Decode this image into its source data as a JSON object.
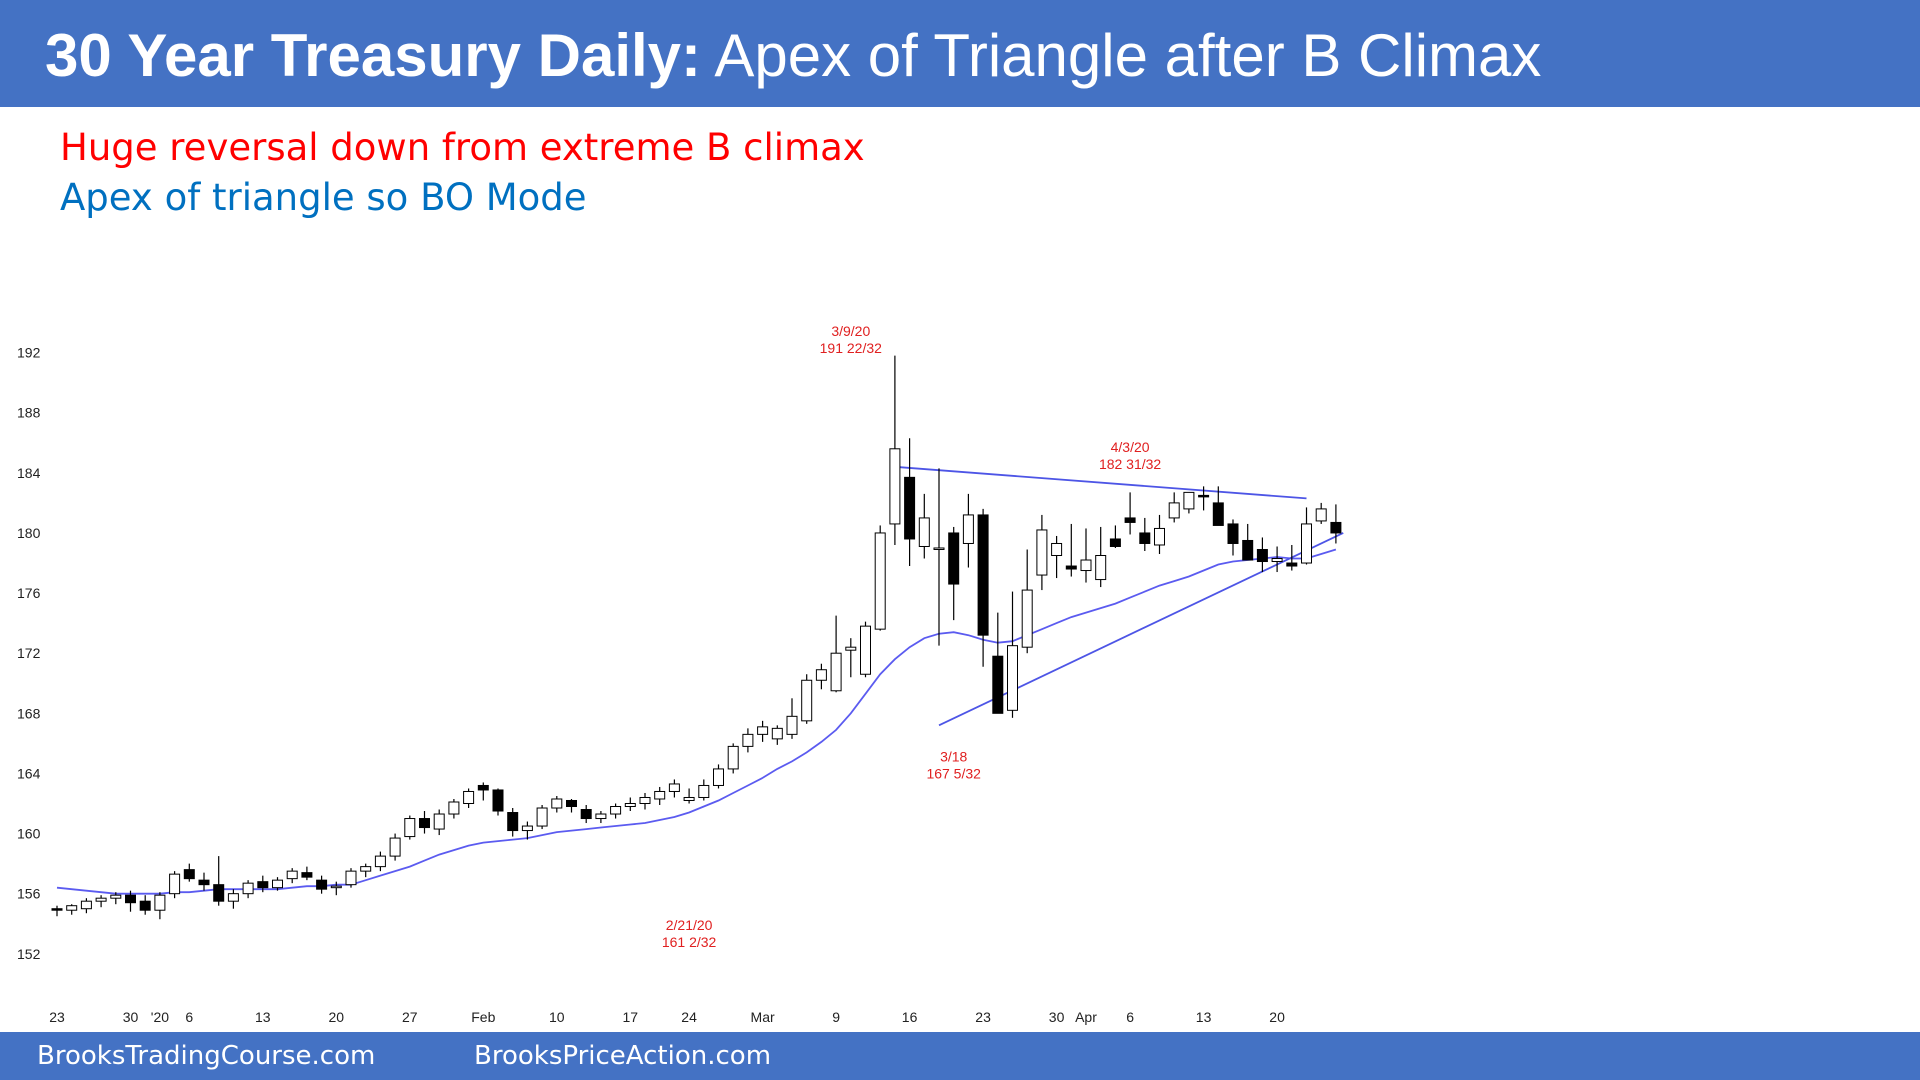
{
  "header": {
    "title_bold": "30 Year Treasury Daily:",
    "title_rest": "Apex of Triangle after B Climax",
    "bg_color": "#4472C4"
  },
  "subtitles": [
    {
      "text": "Huge reversal down from extreme B climax",
      "color": "#FF0000"
    },
    {
      "text": "Apex of triangle so BO Mode",
      "color": "#0070C0"
    }
  ],
  "footer": {
    "left": "BrooksTradingCourse.com",
    "right": "BrooksPriceAction.com"
  },
  "chart_data": {
    "type": "candlestick",
    "ylim": [
      150,
      194
    ],
    "y_ticks": [
      152,
      156,
      160,
      164,
      168,
      172,
      176,
      180,
      184,
      188,
      192
    ],
    "x_ticks": [
      {
        "label": "23",
        "bar": 0
      },
      {
        "label": "30",
        "bar": 5
      },
      {
        "label": "'20",
        "bar": 7
      },
      {
        "label": "6",
        "bar": 9
      },
      {
        "label": "13",
        "bar": 14
      },
      {
        "label": "20",
        "bar": 19
      },
      {
        "label": "27",
        "bar": 24
      },
      {
        "label": "Feb",
        "bar": 29
      },
      {
        "label": "10",
        "bar": 34
      },
      {
        "label": "17",
        "bar": 39
      },
      {
        "label": "24",
        "bar": 43
      },
      {
        "label": "Mar",
        "bar": 48
      },
      {
        "label": "9",
        "bar": 53
      },
      {
        "label": "16",
        "bar": 58
      },
      {
        "label": "23",
        "bar": 63
      },
      {
        "label": "30",
        "bar": 68
      },
      {
        "label": "Apr",
        "bar": 70
      },
      {
        "label": "6",
        "bar": 73
      },
      {
        "label": "13",
        "bar": 78
      },
      {
        "label": "20",
        "bar": 83
      }
    ],
    "candles": [
      [
        155.0,
        155.2,
        154.5,
        154.9
      ],
      [
        154.9,
        155.3,
        154.6,
        155.2
      ],
      [
        155.0,
        155.7,
        154.7,
        155.5
      ],
      [
        155.5,
        155.9,
        155.1,
        155.7
      ],
      [
        155.7,
        156.1,
        155.3,
        155.9
      ],
      [
        155.9,
        156.2,
        154.8,
        155.4
      ],
      [
        155.5,
        155.9,
        154.6,
        154.9
      ],
      [
        154.9,
        156.1,
        154.3,
        155.9
      ],
      [
        156.0,
        157.5,
        155.7,
        157.3
      ],
      [
        157.6,
        158.0,
        156.8,
        157.0
      ],
      [
        156.9,
        157.4,
        156.2,
        156.6
      ],
      [
        156.6,
        158.5,
        155.2,
        155.5
      ],
      [
        155.5,
        156.3,
        155.0,
        156.0
      ],
      [
        156.0,
        156.9,
        155.7,
        156.7
      ],
      [
        156.8,
        157.2,
        156.1,
        156.4
      ],
      [
        156.4,
        157.1,
        156.2,
        156.9
      ],
      [
        157.0,
        157.7,
        156.7,
        157.5
      ],
      [
        157.4,
        157.8,
        156.9,
        157.1
      ],
      [
        156.9,
        157.2,
        156.0,
        156.3
      ],
      [
        156.4,
        156.8,
        155.9,
        156.5
      ],
      [
        156.6,
        157.7,
        156.4,
        157.5
      ],
      [
        157.5,
        158.0,
        157.1,
        157.8
      ],
      [
        157.8,
        158.8,
        157.5,
        158.5
      ],
      [
        158.5,
        160.0,
        158.2,
        159.7
      ],
      [
        159.8,
        161.2,
        159.6,
        161.0
      ],
      [
        161.0,
        161.5,
        160.0,
        160.4
      ],
      [
        160.3,
        161.6,
        159.9,
        161.3
      ],
      [
        161.3,
        162.3,
        161.0,
        162.1
      ],
      [
        162.0,
        163.0,
        161.7,
        162.8
      ],
      [
        163.2,
        163.4,
        162.2,
        162.9
      ],
      [
        162.9,
        163.0,
        161.2,
        161.5
      ],
      [
        161.4,
        161.7,
        159.8,
        160.2
      ],
      [
        160.2,
        160.8,
        159.6,
        160.5
      ],
      [
        160.5,
        161.9,
        160.3,
        161.7
      ],
      [
        161.7,
        162.5,
        161.4,
        162.3
      ],
      [
        162.2,
        162.3,
        161.4,
        161.8
      ],
      [
        161.6,
        161.9,
        160.7,
        161.0
      ],
      [
        161.0,
        161.5,
        160.7,
        161.3
      ],
      [
        161.3,
        162.0,
        161.0,
        161.8
      ],
      [
        161.8,
        162.4,
        161.5,
        162.0
      ],
      [
        162.0,
        162.7,
        161.6,
        162.4
      ],
      [
        162.3,
        163.1,
        161.9,
        162.8
      ],
      [
        162.8,
        163.6,
        162.4,
        163.3
      ],
      [
        162.2,
        163.0,
        162.0,
        162.4
      ],
      [
        162.4,
        163.6,
        162.2,
        163.2
      ],
      [
        163.2,
        164.6,
        163.0,
        164.3
      ],
      [
        164.3,
        166.0,
        164.0,
        165.8
      ],
      [
        165.8,
        167.0,
        165.4,
        166.6
      ],
      [
        166.6,
        167.5,
        166.1,
        167.1
      ],
      [
        166.3,
        167.2,
        165.9,
        167.0
      ],
      [
        166.6,
        169.0,
        166.3,
        167.8
      ],
      [
        167.5,
        170.6,
        167.3,
        170.2
      ],
      [
        170.2,
        171.3,
        169.6,
        170.9
      ],
      [
        169.5,
        174.5,
        169.4,
        172.0
      ],
      [
        172.2,
        173.0,
        170.4,
        172.4
      ],
      [
        170.6,
        174.1,
        170.4,
        173.8
      ],
      [
        173.6,
        180.5,
        173.5,
        180.0
      ],
      [
        180.6,
        191.8,
        179.2,
        185.6
      ],
      [
        183.7,
        186.3,
        177.8,
        179.6
      ],
      [
        179.1,
        182.6,
        178.3,
        181.0
      ],
      [
        179.0,
        184.3,
        172.5,
        179.0
      ],
      [
        180.0,
        180.4,
        174.2,
        176.6
      ],
      [
        179.3,
        182.6,
        177.7,
        181.2
      ],
      [
        181.2,
        181.6,
        171.1,
        173.2
      ],
      [
        171.8,
        174.7,
        168.2,
        168.0
      ],
      [
        168.2,
        176.1,
        167.7,
        172.5
      ],
      [
        172.4,
        178.9,
        172.0,
        176.2
      ],
      [
        177.2,
        181.2,
        176.2,
        180.2
      ],
      [
        178.5,
        179.8,
        177.0,
        179.3
      ],
      [
        177.8,
        180.6,
        177.1,
        177.6
      ],
      [
        177.5,
        180.3,
        176.7,
        178.2
      ],
      [
        176.9,
        180.4,
        176.4,
        178.5
      ],
      [
        179.6,
        180.5,
        179.0,
        179.1
      ],
      [
        181.0,
        182.7,
        179.9,
        180.7
      ],
      [
        180.0,
        181.0,
        178.8,
        179.3
      ],
      [
        179.2,
        181.2,
        178.6,
        180.3
      ],
      [
        181.0,
        182.7,
        180.7,
        182.0
      ],
      [
        181.6,
        182.5,
        181.3,
        182.7
      ],
      [
        182.5,
        183.1,
        181.5,
        182.4
      ],
      [
        182.0,
        183.1,
        180.6,
        180.5
      ],
      [
        180.6,
        180.9,
        178.5,
        179.3
      ],
      [
        179.5,
        180.6,
        178.3,
        178.2
      ],
      [
        178.9,
        179.7,
        177.4,
        178.1
      ],
      [
        178.1,
        179.1,
        177.4,
        178.3
      ],
      [
        178.0,
        179.2,
        177.5,
        177.8
      ],
      [
        178.0,
        181.7,
        177.9,
        180.6
      ],
      [
        180.8,
        182.0,
        180.6,
        181.6
      ],
      [
        180.7,
        181.9,
        179.3,
        180.0
      ]
    ],
    "ema": [
      156.4,
      156.3,
      156.2,
      156.1,
      156.0,
      156.0,
      156.0,
      156.0,
      156.1,
      156.1,
      156.2,
      156.3,
      156.3,
      156.3,
      156.3,
      156.3,
      156.4,
      156.5,
      156.5,
      156.6,
      156.6,
      156.9,
      157.2,
      157.5,
      157.8,
      158.2,
      158.6,
      158.9,
      159.2,
      159.4,
      159.5,
      159.6,
      159.7,
      159.9,
      160.1,
      160.2,
      160.3,
      160.4,
      160.5,
      160.6,
      160.7,
      160.9,
      161.1,
      161.4,
      161.8,
      162.2,
      162.7,
      163.2,
      163.7,
      164.3,
      164.8,
      165.4,
      166.1,
      166.9,
      168.0,
      169.3,
      170.6,
      171.6,
      172.4,
      173.0,
      173.3,
      173.4,
      173.2,
      172.9,
      172.7,
      172.8,
      173.2,
      173.6,
      174.0,
      174.4,
      174.7,
      175.0,
      175.3,
      175.7,
      176.1,
      176.5,
      176.8,
      177.1,
      177.5,
      177.9,
      178.1,
      178.2,
      178.3,
      178.4,
      178.3,
      178.3,
      178.6,
      178.9
    ],
    "trendlines": [
      {
        "from": [
          57,
          184.4
        ],
        "to": [
          85,
          182.3
        ]
      },
      {
        "from": [
          60,
          167.2
        ],
        "to": [
          87.5,
          180.0
        ]
      }
    ],
    "annotations": [
      {
        "lines": [
          "3/9/20",
          "191 22/32"
        ],
        "bar": 54,
        "price": 193.1
      },
      {
        "lines": [
          "4/3/20",
          "182 31/32"
        ],
        "bar": 73,
        "price": 185.4
      },
      {
        "lines": [
          "3/18",
          "167 5/32"
        ],
        "bar": 61,
        "price": 164.8
      },
      {
        "lines": [
          "2/21/20",
          "161 2/32"
        ],
        "bar": 43,
        "price": 153.6
      }
    ],
    "colors": {
      "up": "#ffffff",
      "down": "#000000",
      "ema": "#5b5bf0",
      "trendline": "#4d55e6",
      "annotation": "#e02020"
    }
  }
}
